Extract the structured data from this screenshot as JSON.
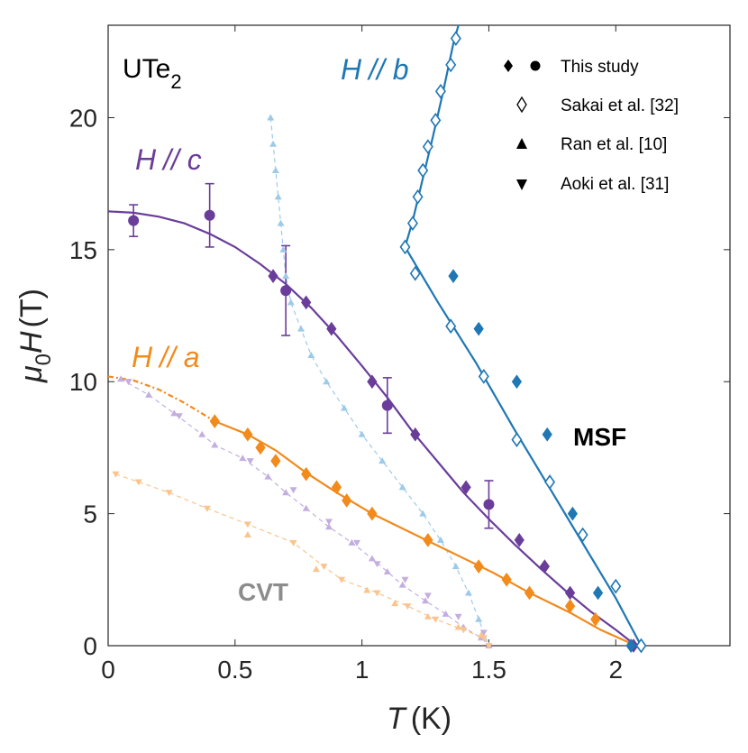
{
  "chart_data": {
    "type": "scatter",
    "title": "",
    "xlabel": {
      "sym": "T",
      "unit": "(K)"
    },
    "ylabel": {
      "sym": "μ",
      "sub": "0",
      "sym2": "H",
      "unit": "(T)"
    },
    "xlim": [
      0,
      2.45
    ],
    "ylim": [
      0,
      23.5
    ],
    "xticks": [
      0,
      0.5,
      1,
      1.5,
      2
    ],
    "xtick_labels": [
      "0",
      "0.5",
      "1",
      "1.5",
      "2"
    ],
    "yticks": [
      0,
      5,
      10,
      15,
      20
    ],
    "ytick_labels": [
      "0",
      "5",
      "10",
      "15",
      "20"
    ],
    "colors": {
      "a": "#f28a1c",
      "b": "#1f77b4",
      "c": "#6a3d9a",
      "black": "#000000",
      "gray": "#8c8c8c",
      "a_light": "#f9c48e",
      "b_light": "#9ecae9",
      "c_light": "#c3aee0"
    },
    "annotations": {
      "compound": {
        "base": "UTe",
        "sub": "2"
      },
      "label_a": {
        "sym": "H",
        "rest": "// a"
      },
      "label_b": {
        "sym": "H",
        "rest": "// b"
      },
      "label_c": {
        "sym": "H",
        "rest": "// c"
      },
      "msf": "MSF",
      "cvt": "CVT"
    },
    "legend": {
      "position": "top-right",
      "entries": [
        {
          "label": "This study",
          "markers": [
            "filled-diamond",
            "filled-circle"
          ]
        },
        {
          "label": "Sakai et al. [32]",
          "markers": [
            "open-diamond"
          ]
        },
        {
          "label": "Ran et al. [10]",
          "markers": [
            "filled-triangle-up"
          ]
        },
        {
          "label": "Aoki et al. [31]",
          "markers": [
            "filled-triangle-down"
          ]
        }
      ]
    },
    "series": [
      {
        "name": "This study H//a (diamonds)",
        "color": "a",
        "marker": "diamond",
        "fill": true,
        "points": [
          [
            0.42,
            8.5
          ],
          [
            0.55,
            8.0
          ],
          [
            0.6,
            7.5
          ],
          [
            0.66,
            7.0
          ],
          [
            0.78,
            6.5
          ],
          [
            0.9,
            6.0
          ],
          [
            0.94,
            5.5
          ],
          [
            1.04,
            5.0
          ],
          [
            1.26,
            4.0
          ],
          [
            1.46,
            3.0
          ],
          [
            1.57,
            2.5
          ],
          [
            1.66,
            2.0
          ],
          [
            1.82,
            1.5
          ],
          [
            1.92,
            1.0
          ],
          [
            2.06,
            0.0
          ]
        ]
      },
      {
        "name": "This study H//c (diamonds)",
        "color": "c",
        "marker": "diamond",
        "fill": true,
        "points": [
          [
            0.65,
            14.0
          ],
          [
            0.78,
            13.0
          ],
          [
            0.88,
            12.0
          ],
          [
            1.04,
            10.0
          ],
          [
            1.21,
            8.0
          ],
          [
            1.41,
            6.0
          ],
          [
            1.62,
            4.0
          ],
          [
            1.72,
            3.0
          ],
          [
            1.82,
            2.0
          ],
          [
            2.07,
            0.0
          ]
        ]
      },
      {
        "name": "This study H//c (circles)",
        "color": "c",
        "marker": "circle",
        "fill": true,
        "points": [
          [
            0.1,
            16.1,
            0.6
          ],
          [
            0.4,
            16.3,
            1.2
          ],
          [
            0.7,
            13.45,
            1.7
          ],
          [
            1.1,
            9.1,
            1.05
          ],
          [
            1.5,
            5.35,
            0.9
          ]
        ]
      },
      {
        "name": "This study H//b (diamonds)",
        "color": "b",
        "marker": "diamond",
        "fill": true,
        "points": [
          [
            1.36,
            14.0
          ],
          [
            1.46,
            12.0
          ],
          [
            1.61,
            10.0
          ],
          [
            1.73,
            8.0
          ],
          [
            1.83,
            5.0
          ],
          [
            1.93,
            2.0
          ],
          [
            2.06,
            0.0
          ]
        ]
      },
      {
        "name": "Sakai et al. H//b",
        "color": "b",
        "marker": "diamond",
        "fill": false,
        "points": [
          [
            1.17,
            15.1
          ],
          [
            1.2,
            16.0
          ],
          [
            1.22,
            17.0
          ],
          [
            1.24,
            18.0
          ],
          [
            1.26,
            18.9
          ],
          [
            1.29,
            19.9
          ],
          [
            1.31,
            21.0
          ],
          [
            1.35,
            22.0
          ],
          [
            1.37,
            23.0
          ],
          [
            1.21,
            14.1
          ],
          [
            1.35,
            12.1
          ],
          [
            1.48,
            10.2
          ],
          [
            1.61,
            7.8
          ],
          [
            1.74,
            6.2
          ],
          [
            1.87,
            4.2
          ],
          [
            2.0,
            2.25
          ],
          [
            2.1,
            0.0
          ]
        ]
      },
      {
        "name": "Ran et al. H//b",
        "color": "b_light",
        "marker": "triangle-up",
        "fill": true,
        "line": true,
        "points": [
          [
            0.64,
            20.0
          ],
          [
            0.65,
            19.0
          ],
          [
            0.66,
            18.0
          ],
          [
            0.67,
            17.0
          ],
          [
            0.68,
            16.0
          ],
          [
            0.69,
            15.0
          ],
          [
            0.7,
            14.0
          ],
          [
            0.72,
            13.0
          ],
          [
            0.76,
            12.0
          ],
          [
            0.8,
            11.0
          ],
          [
            0.86,
            10.0
          ],
          [
            0.93,
            9.0
          ],
          [
            1.0,
            8.0
          ],
          [
            1.08,
            7.0
          ],
          [
            1.16,
            6.0
          ],
          [
            1.24,
            5.0
          ],
          [
            1.31,
            4.0
          ],
          [
            1.37,
            3.0
          ],
          [
            1.42,
            2.0
          ],
          [
            1.46,
            1.0
          ],
          [
            1.5,
            0.0
          ]
        ]
      },
      {
        "name": "Ran et al. H//c",
        "color": "c_light",
        "marker": "triangle-up",
        "fill": true,
        "line": true,
        "points": [
          [
            0.05,
            10.1
          ],
          [
            0.16,
            9.5
          ],
          [
            0.26,
            8.8
          ],
          [
            0.37,
            8.0
          ],
          [
            0.42,
            7.6
          ],
          [
            0.53,
            7.1
          ],
          [
            0.63,
            6.4
          ],
          [
            0.7,
            5.8
          ],
          [
            0.78,
            5.2
          ],
          [
            0.87,
            4.5
          ],
          [
            0.96,
            3.9
          ],
          [
            1.04,
            3.3
          ],
          [
            1.1,
            2.8
          ],
          [
            1.16,
            2.3
          ],
          [
            1.25,
            1.7
          ],
          [
            1.33,
            1.2
          ],
          [
            1.4,
            0.7
          ],
          [
            1.47,
            0.3
          ],
          [
            1.5,
            0.0
          ]
        ]
      },
      {
        "name": "Ran et al. H//a",
        "color": "a_light",
        "marker": "triangle-up",
        "fill": true,
        "line": false,
        "points": [
          [
            0.55,
            4.2
          ],
          [
            0.82,
            2.9
          ],
          [
            1.02,
            2.1
          ],
          [
            1.13,
            1.6
          ],
          [
            1.26,
            1.1
          ],
          [
            1.38,
            0.7
          ],
          [
            1.47,
            0.4
          ]
        ]
      },
      {
        "name": "Aoki et al. H//c",
        "color": "c_light",
        "marker": "triangle-down",
        "fill": true,
        "line": false,
        "points": [
          [
            0.08,
            10.0
          ],
          [
            0.28,
            8.7
          ],
          [
            0.56,
            7.0
          ],
          [
            0.73,
            5.9
          ],
          [
            0.87,
            4.7
          ],
          [
            0.98,
            3.9
          ],
          [
            1.06,
            3.1
          ],
          [
            1.17,
            2.5
          ],
          [
            1.26,
            1.9
          ],
          [
            1.38,
            1.1
          ],
          [
            1.48,
            0.5
          ]
        ]
      },
      {
        "name": "Aoki et al. H//a",
        "color": "a_light",
        "marker": "triangle-down",
        "fill": true,
        "line": true,
        "points": [
          [
            0.03,
            6.5
          ],
          [
            0.12,
            6.2
          ],
          [
            0.24,
            5.8
          ],
          [
            0.39,
            5.2
          ],
          [
            0.55,
            4.6
          ],
          [
            0.73,
            3.9
          ],
          [
            0.85,
            3.0
          ],
          [
            0.92,
            2.5
          ],
          [
            1.06,
            2.0
          ],
          [
            1.18,
            1.5
          ],
          [
            1.29,
            1.0
          ],
          [
            1.4,
            0.6
          ],
          [
            1.48,
            0.3
          ],
          [
            1.5,
            0.0
          ]
        ]
      }
    ],
    "fit_curves": [
      {
        "name": "fit H//a",
        "color": "a",
        "points": [
          [
            0.42,
            8.5
          ],
          [
            0.55,
            8.0
          ],
          [
            0.66,
            7.4
          ],
          [
            0.78,
            6.55
          ],
          [
            0.9,
            5.8
          ],
          [
            1.04,
            5.0
          ],
          [
            1.2,
            4.25
          ],
          [
            1.36,
            3.5
          ],
          [
            1.52,
            2.75
          ],
          [
            1.66,
            2.0
          ],
          [
            1.82,
            1.25
          ],
          [
            1.94,
            0.6
          ],
          [
            2.08,
            0.0
          ]
        ]
      },
      {
        "name": "fit H//a extrapolated",
        "color": "a",
        "dashed": true,
        "points": [
          [
            0.0,
            10.2
          ],
          [
            0.1,
            10.05
          ],
          [
            0.2,
            9.7
          ],
          [
            0.3,
            9.2
          ],
          [
            0.42,
            8.5
          ]
        ]
      },
      {
        "name": "fit H//c",
        "color": "c",
        "points": [
          [
            0.0,
            16.45
          ],
          [
            0.1,
            16.4
          ],
          [
            0.2,
            16.25
          ],
          [
            0.3,
            16.0
          ],
          [
            0.4,
            15.6
          ],
          [
            0.5,
            15.1
          ],
          [
            0.6,
            14.45
          ],
          [
            0.7,
            13.7
          ],
          [
            0.8,
            12.8
          ],
          [
            0.9,
            11.75
          ],
          [
            1.0,
            10.6
          ],
          [
            1.1,
            9.4
          ],
          [
            1.2,
            8.1
          ],
          [
            1.3,
            6.95
          ],
          [
            1.4,
            5.8
          ],
          [
            1.5,
            4.8
          ],
          [
            1.6,
            3.85
          ],
          [
            1.7,
            2.95
          ],
          [
            1.8,
            2.1
          ],
          [
            1.9,
            1.3
          ],
          [
            2.0,
            0.6
          ],
          [
            2.08,
            0.0
          ]
        ]
      },
      {
        "name": "fit H//b upper",
        "color": "b",
        "points": [
          [
            1.17,
            15.1
          ],
          [
            1.2,
            16.1
          ],
          [
            1.24,
            17.7
          ],
          [
            1.28,
            19.3
          ],
          [
            1.32,
            21.0
          ],
          [
            1.36,
            22.8
          ],
          [
            1.38,
            23.5
          ]
        ]
      },
      {
        "name": "fit H//b lower",
        "color": "b",
        "points": [
          [
            1.17,
            15.1
          ],
          [
            1.3,
            13.0
          ],
          [
            1.45,
            10.7
          ],
          [
            1.6,
            8.2
          ],
          [
            1.75,
            5.8
          ],
          [
            1.9,
            3.4
          ],
          [
            2.0,
            1.8
          ],
          [
            2.1,
            0.0
          ]
        ]
      }
    ]
  }
}
